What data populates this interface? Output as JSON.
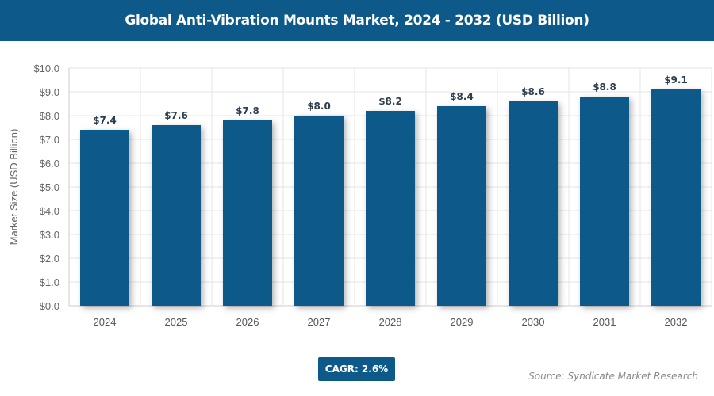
{
  "chart_data": {
    "type": "bar",
    "title": "Global Anti-Vibration Mounts Market, 2024 - 2032 (USD Billion)",
    "categories": [
      "2024",
      "2025",
      "2026",
      "2027",
      "2028",
      "2029",
      "2030",
      "2031",
      "2032"
    ],
    "values": [
      7.4,
      7.6,
      7.8,
      8.0,
      8.2,
      8.4,
      8.6,
      8.8,
      9.1
    ],
    "data_labels": [
      "$7.4",
      "$7.6",
      "$7.8",
      "$8.0",
      "$8.2",
      "$8.4",
      "$8.6",
      "$8.8",
      "$9.1"
    ],
    "xlabel": "",
    "ylabel": "Market Size (USD Billion)",
    "ylim": [
      0,
      10
    ],
    "yticks": [
      "$0.0",
      "$1.0",
      "$2.0",
      "$3.0",
      "$4.0",
      "$5.0",
      "$6.0",
      "$7.0",
      "$8.0",
      "$9.0",
      "$10.0"
    ],
    "grid": true,
    "bar_color": "#0d5a8a"
  },
  "cagr": "CAGR: 2.6%",
  "source": "Source: Syndicate Market Research"
}
